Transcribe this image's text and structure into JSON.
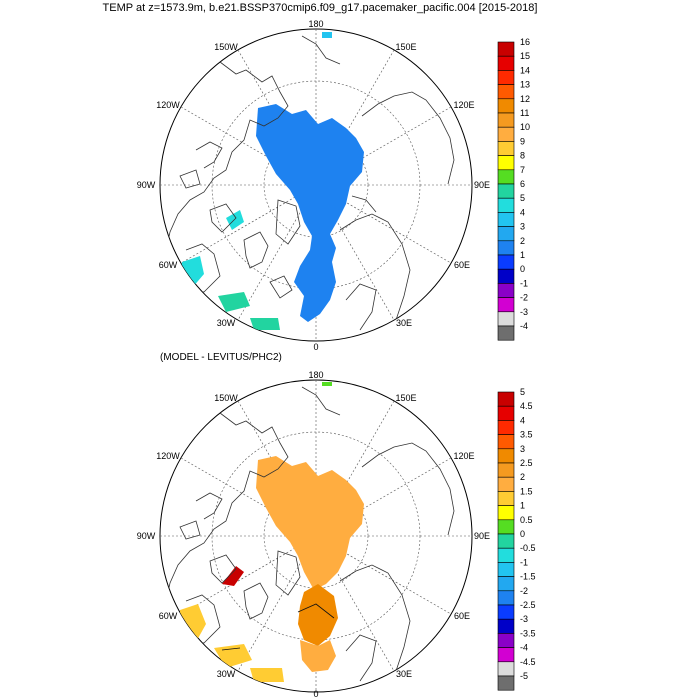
{
  "title": "TEMP at z=1573.9m, b.e21.BSSP370cmip6.f09_g17.pacemaker_pacific.004 [2015-2018]",
  "subtitle": "(MODEL - LEVITUS/PHC2)",
  "longitude_labels": {
    "lon_180": "180",
    "lon_150W": "150W",
    "lon_150E": "150E",
    "lon_120W": "120W",
    "lon_120E": "120E",
    "lon_90W": "90W",
    "lon_90E": "90E",
    "lon_60W": "60W",
    "lon_60E": "60E",
    "lon_30W": "30W",
    "lon_30E": "30E",
    "lon_0": "0"
  },
  "colorbar_top": {
    "labels": [
      "16",
      "15",
      "14",
      "13",
      "12",
      "11",
      "10",
      "9",
      "8",
      "7",
      "6",
      "5",
      "4",
      "3",
      "2",
      "1",
      "0",
      "-1",
      "-2",
      "-3",
      "-4"
    ],
    "colors": [
      "#c80000",
      "#e60000",
      "#ff2a00",
      "#ff5a00",
      "#f08a00",
      "#f59a20",
      "#ffad40",
      "#ffcc33",
      "#ffff00",
      "#55dd22",
      "#22d4a0",
      "#22dddd",
      "#22c4f0",
      "#22a8f0",
      "#1e82f0",
      "#0a3cff",
      "#0000c8",
      "#8a00c8",
      "#d200d2",
      "#dcdcdc",
      "#6e6e6e"
    ]
  },
  "colorbar_bottom": {
    "labels": [
      "5",
      "4.5",
      "4",
      "3.5",
      "3",
      "2.5",
      "2",
      "1.5",
      "1",
      "0.5",
      "0",
      "-0.5",
      "-1",
      "-1.5",
      "-2",
      "-2.5",
      "-3",
      "-3.5",
      "-4",
      "-4.5",
      "-5"
    ],
    "colors": [
      "#c80000",
      "#e60000",
      "#ff2a00",
      "#ff5a00",
      "#f08a00",
      "#f59a20",
      "#ffad40",
      "#ffcc33",
      "#ffff00",
      "#55dd22",
      "#22d4a0",
      "#22dddd",
      "#22c4f0",
      "#22a8f0",
      "#1e82f0",
      "#0a3cff",
      "#0000c8",
      "#8a00c8",
      "#d200d2",
      "#dcdcdc",
      "#6e6e6e"
    ]
  }
}
